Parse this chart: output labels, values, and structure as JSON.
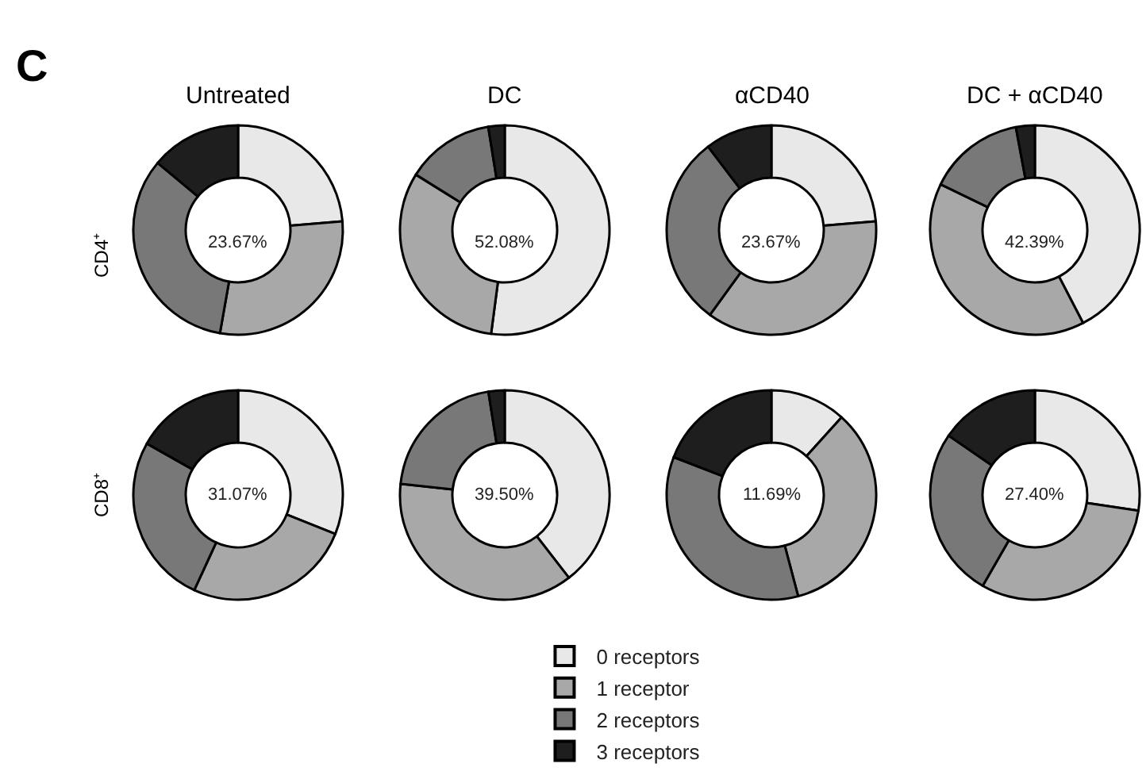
{
  "chart_data": [
    {
      "type": "donut",
      "legend": "bottom",
      "title": "Untreated",
      "ylabel": "CD4⁺",
      "annotations": [
        "C",
        "23.67%"
      ],
      "categories": [
        "0 receptors",
        "1 receptor",
        "2 receptors",
        "3 receptors"
      ],
      "values": [
        23.67,
        29.1,
        33.3,
        13.93
      ],
      "colors": [
        "#e8e8e8",
        "#a8a8a8",
        "#787878",
        "#1e1e1e"
      ]
    },
    {
      "type": "donut",
      "title": "DC",
      "annotations": [
        "52.08%"
      ],
      "categories": [
        null,
        null,
        null,
        null
      ],
      "values": [
        52.08,
        31.8,
        13.6,
        2.52
      ],
      "colors": [
        "#e8e8e8",
        "#a8a8a8",
        "#787878",
        "#1e1e1e"
      ]
    },
    {
      "type": "donut",
      "title": "αCD40",
      "annotations": [
        "23.67%"
      ],
      "categories": [
        null,
        null,
        null,
        null
      ],
      "values": [
        23.67,
        36.3,
        29.7,
        10.33
      ],
      "colors": [
        "#e8e8e8",
        "#a8a8a8",
        "#787878",
        "#1e1e1e"
      ]
    },
    {
      "type": "donut",
      "title": "DC + αCD40",
      "annotations": [
        "42.39%"
      ],
      "categories": [
        null,
        null,
        null,
        null
      ],
      "values": [
        42.39,
        39.8,
        14.9,
        2.91
      ],
      "colors": [
        "#e8e8e8",
        "#a8a8a8",
        "#787878",
        "#1e1e1e"
      ]
    },
    {
      "type": "donut",
      "ylabel": "CD8⁺",
      "annotations": [
        "31.07%"
      ],
      "categories": [
        null,
        null,
        null,
        null
      ],
      "values": [
        31.07,
        25.8,
        26.3,
        16.83
      ],
      "colors": [
        "#e8e8e8",
        "#a8a8a8",
        "#787878",
        "#1e1e1e"
      ]
    },
    {
      "type": "donut",
      "annotations": [
        "39.50%"
      ],
      "categories": [
        null,
        null,
        null,
        null
      ],
      "values": [
        39.5,
        37.2,
        20.8,
        2.5
      ],
      "colors": [
        "#e8e8e8",
        "#a8a8a8",
        "#787878",
        "#1e1e1e"
      ]
    },
    {
      "type": "donut",
      "annotations": [
        "11.69%"
      ],
      "categories": [
        null,
        null,
        null,
        null
      ],
      "values": [
        11.69,
        34.2,
        35.0,
        19.11
      ],
      "colors": [
        "#e8e8e8",
        "#a8a8a8",
        "#787878",
        "#1e1e1e"
      ]
    },
    {
      "type": "donut",
      "annotations": [
        "27.40%"
      ],
      "categories": [
        null,
        null,
        null,
        null
      ],
      "values": [
        27.4,
        30.9,
        26.3,
        15.4
      ],
      "colors": [
        "#e8e8e8",
        "#a8a8a8",
        "#787878",
        "#1e1e1e"
      ]
    }
  ]
}
